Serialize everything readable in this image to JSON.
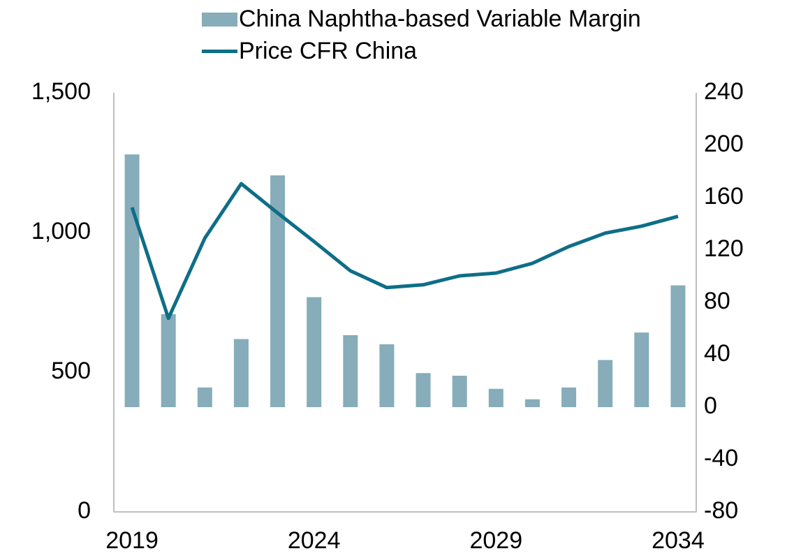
{
  "chart_data": {
    "type": "bar_line",
    "x": [
      2019,
      2020,
      2021,
      2022,
      2023,
      2024,
      2025,
      2026,
      2027,
      2028,
      2029,
      2030,
      2031,
      2032,
      2033,
      2034
    ],
    "series": [
      {
        "name": "China Naphtha-based Variable Margin",
        "type": "bar",
        "axis": "y2",
        "color": "#86adb9",
        "values": [
          193,
          71,
          15,
          52,
          177,
          84,
          55,
          48,
          26,
          24,
          14,
          6,
          15,
          36,
          57,
          93
        ]
      },
      {
        "name": "Price CFR China",
        "type": "line",
        "axis": "y",
        "color": "#0e6e87",
        "values": [
          1090,
          693,
          980,
          1175,
          1070,
          968,
          863,
          803,
          813,
          845,
          855,
          890,
          950,
          998,
          1023,
          1058
        ]
      }
    ],
    "xlim": [
      2018.5,
      2034.5
    ],
    "xticks": [
      2019,
      2024,
      2029,
      2034
    ],
    "ylim": [
      0,
      1500
    ],
    "yticks": [
      0,
      500,
      {
        "value": 1000,
        "label": "1,000"
      },
      {
        "value": 1500,
        "label": "1,500"
      }
    ],
    "y2lim": [
      -80,
      240
    ],
    "y2ticks": [
      -80,
      -40,
      0,
      40,
      80,
      120,
      160,
      200,
      240
    ],
    "grid": false,
    "legend": "top"
  }
}
